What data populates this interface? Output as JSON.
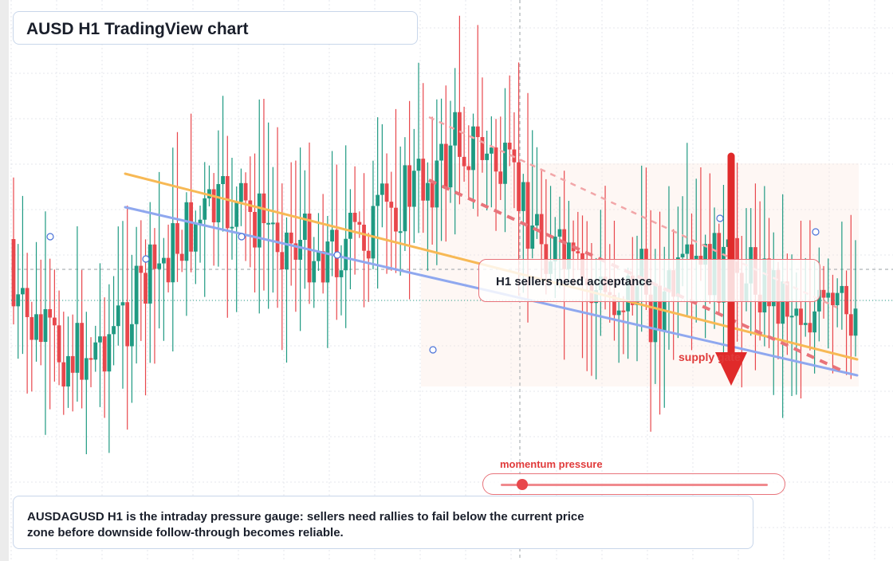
{
  "title": "AUSD H1 TradingView chart",
  "callout": {
    "text": "H1 sellers need acceptance"
  },
  "supply_label": "supply gate",
  "gauge": {
    "title": "momentum pressure",
    "level": 0.08
  },
  "note": {
    "text": "AUSDAGUSD H1 is the intraday pressure gauge: sellers need rallies to fail below the current price zone before downside follow-through becomes reliable."
  },
  "colors": {
    "bull": "#1f9a82",
    "bear": "#e8474c",
    "trend_orange": "#f7b955",
    "trend_blue": "#8fa8ef",
    "resistance_dashed": "#e8737a",
    "arrow": "#e02a2a",
    "accent_text": "#e03a3a"
  },
  "chart_data": {
    "type": "candlestick",
    "timeframe": "H1",
    "candle_count": 186,
    "seed": 7,
    "overlays": [
      "two rising-to-falling trendlines (orange, blue)",
      "two dashed descending resistance lines",
      "shaded supply zone",
      "downward arrow",
      "current price dotted line"
    ],
    "grid": true
  }
}
